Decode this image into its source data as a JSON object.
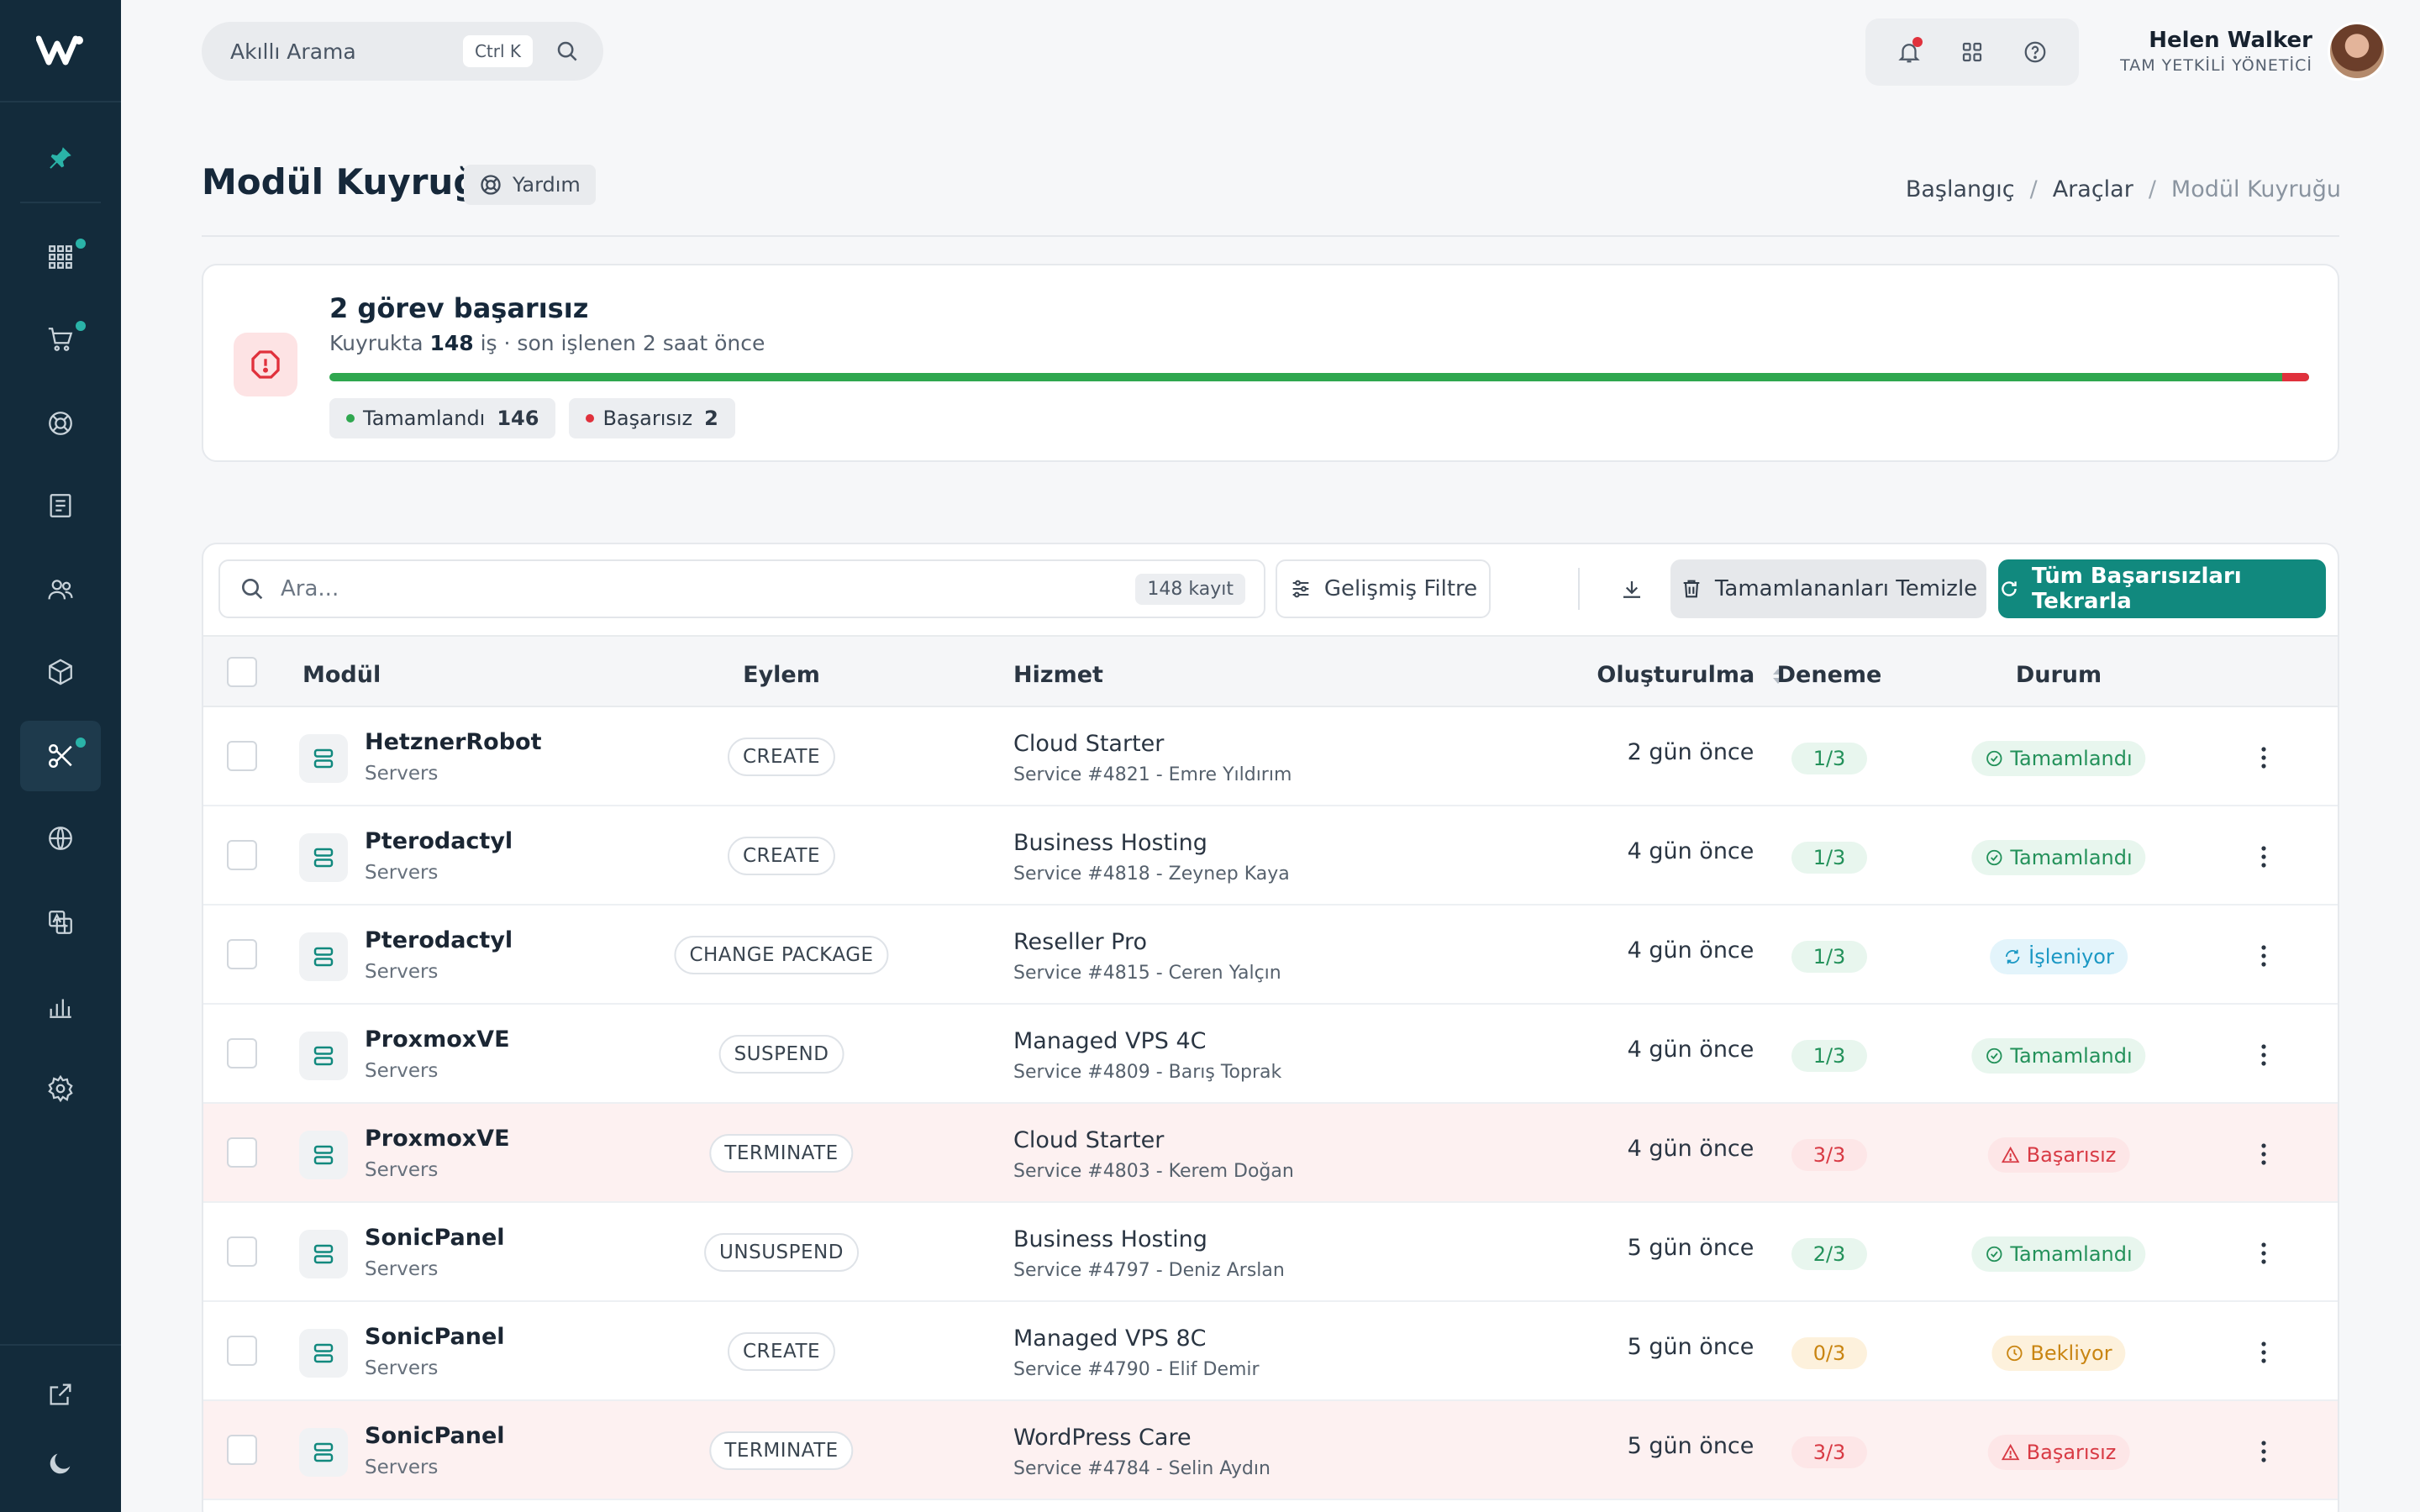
{
  "search": {
    "label": "Akıllı Arama",
    "shortcut": "Ctrl K"
  },
  "user": {
    "name": "Helen Walker",
    "role": "TAM YETKİLİ YÖNETİCİ"
  },
  "page": {
    "title": "Modül Kuyruğu",
    "help_label": "Yardım"
  },
  "breadcrumb": [
    "Başlangıç",
    "Araçlar",
    "Modül Kuyruğu"
  ],
  "status": {
    "title": "2 görev başarısız",
    "sub_prefix": "Kuyrukta",
    "queue_count": "148",
    "sub_suffix": "iş · son işlenen 2 saat önce",
    "completed_label": "Tamamlandı",
    "completed_count": "146",
    "failed_label": "Başarısız",
    "failed_count": "2",
    "completed_fraction": 0.9865,
    "colors": {
      "success": "#2fa74f",
      "danger": "#e0313c"
    }
  },
  "toolbar": {
    "search_placeholder": "Ara...",
    "record_count": "148 kayıt",
    "filter_label": "Gelişmiş Filtre",
    "clear_label": "Tamamlananları Temizle",
    "retry_label": "Tüm Başarısızları Tekrarla"
  },
  "table": {
    "headers": {
      "module": "Modül",
      "action": "Eylem",
      "service": "Hizmet",
      "created": "Oluşturulma",
      "attempt": "Deneme",
      "status": "Durum"
    },
    "rows": [
      {
        "module": "HetznerRobot",
        "category": "Servers",
        "action": "CREATE",
        "service": "Cloud Starter",
        "service_detail": "Service #4821 - Emre Yıldırım",
        "created": "2 gün önce",
        "attempt": "1/3",
        "attempt_tone": "g",
        "status": "Tamamlandı",
        "status_kind": "done",
        "failed": false
      },
      {
        "module": "Pterodactyl",
        "category": "Servers",
        "action": "CREATE",
        "service": "Business Hosting",
        "service_detail": "Service #4818 - Zeynep Kaya",
        "created": "4 gün önce",
        "attempt": "1/3",
        "attempt_tone": "g",
        "status": "Tamamlandı",
        "status_kind": "done",
        "failed": false
      },
      {
        "module": "Pterodactyl",
        "category": "Servers",
        "action": "CHANGE PACKAGE",
        "service": "Reseller Pro",
        "service_detail": "Service #4815 - Ceren Yalçın",
        "created": "4 gün önce",
        "attempt": "1/3",
        "attempt_tone": "g",
        "status": "İşleniyor",
        "status_kind": "proc",
        "failed": false
      },
      {
        "module": "ProxmoxVE",
        "category": "Servers",
        "action": "SUSPEND",
        "service": "Managed VPS 4C",
        "service_detail": "Service #4809 - Barış Toprak",
        "created": "4 gün önce",
        "attempt": "1/3",
        "attempt_tone": "g",
        "status": "Tamamlandı",
        "status_kind": "done",
        "failed": false
      },
      {
        "module": "ProxmoxVE",
        "category": "Servers",
        "action": "TERMINATE",
        "service": "Cloud Starter",
        "service_detail": "Service #4803 - Kerem Doğan",
        "created": "4 gün önce",
        "attempt": "3/3",
        "attempt_tone": "r",
        "status": "Başarısız",
        "status_kind": "fail",
        "failed": true
      },
      {
        "module": "SonicPanel",
        "category": "Servers",
        "action": "UNSUSPEND",
        "service": "Business Hosting",
        "service_detail": "Service #4797 - Deniz Arslan",
        "created": "5 gün önce",
        "attempt": "2/3",
        "attempt_tone": "g",
        "status": "Tamamlandı",
        "status_kind": "done",
        "failed": false
      },
      {
        "module": "SonicPanel",
        "category": "Servers",
        "action": "CREATE",
        "service": "Managed VPS 8C",
        "service_detail": "Service #4790 - Elif Demir",
        "created": "5 gün önce",
        "attempt": "0/3",
        "attempt_tone": "y",
        "status": "Bekliyor",
        "status_kind": "wait",
        "failed": false
      },
      {
        "module": "SonicPanel",
        "category": "Servers",
        "action": "TERMINATE",
        "service": "WordPress Care",
        "service_detail": "Service #4784 - Selin Aydın",
        "created": "5 gün önce",
        "attempt": "3/3",
        "attempt_tone": "r",
        "status": "Başarısız",
        "status_kind": "fail",
        "failed": true
      }
    ]
  },
  "sidebar": {
    "items": [
      {
        "name": "pin-icon"
      },
      {
        "name": "apps-grid-icon"
      },
      {
        "name": "cart-icon"
      },
      {
        "name": "support-icon"
      },
      {
        "name": "invoice-icon"
      },
      {
        "name": "users-icon"
      },
      {
        "name": "package-icon"
      },
      {
        "name": "tools-icon"
      },
      {
        "name": "globe-icon"
      },
      {
        "name": "translate-icon"
      },
      {
        "name": "reports-icon"
      },
      {
        "name": "settings-icon"
      },
      {
        "name": "external-link-icon"
      },
      {
        "name": "dark-mode-icon"
      }
    ],
    "accent": "#2ab3a8"
  }
}
